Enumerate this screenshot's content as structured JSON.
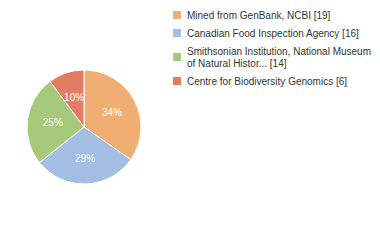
{
  "chart_data": {
    "type": "pie",
    "categories": [
      "Mined from GenBank, NCBI [19]",
      "Canadian Food Inspection Agency [16]",
      "Smithsonian Institution, National Museum of Natural Histor... [14]",
      "Centre for Biodiversity Genomics [6]"
    ],
    "values": [
      34,
      29,
      25,
      10
    ],
    "value_labels": [
      "34%",
      "29%",
      "25%",
      "10%"
    ],
    "colors": [
      "#f0ae73",
      "#a3bde3",
      "#a6c97c",
      "#e27c63"
    ],
    "data_labels": true,
    "legend": "right"
  }
}
